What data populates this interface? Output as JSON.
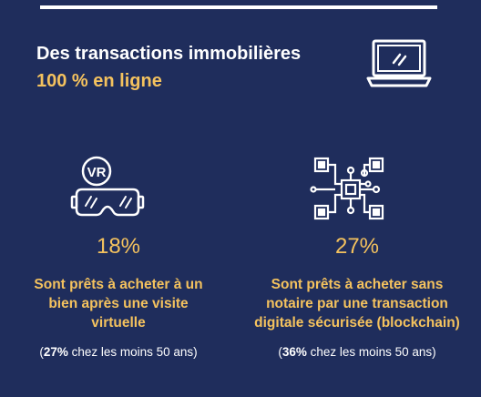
{
  "header": {
    "title": "Des transactions immobilières",
    "subtitle": "100 % en ligne",
    "icon": "laptop-icon"
  },
  "colors": {
    "background": "#1f2d5c",
    "accent": "#f4c25e",
    "text": "#ffffff"
  },
  "stats": [
    {
      "icon": "vr-headset-icon",
      "icon_label": "VR",
      "value": "18%",
      "description": "Sont prêts à acheter à un\nbien après une visite\nvirtuelle",
      "note_open": "(",
      "note_bold": "27%",
      "note_rest": " chez les moins 50 ans)"
    },
    {
      "icon": "blockchain-chip-icon",
      "icon_label": "",
      "value": "27%",
      "description": "Sont prêts à acheter sans\nnotaire par une transaction\ndigitale sécurisée (blockchain)",
      "note_open": "(",
      "note_bold": "36%",
      "note_rest": " chez les moins 50 ans)"
    }
  ]
}
